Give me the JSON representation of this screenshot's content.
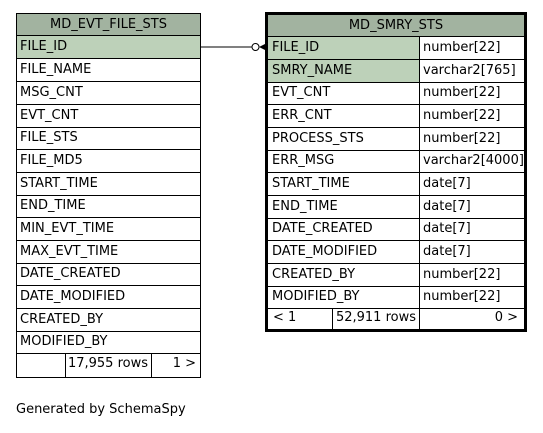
{
  "left_table": {
    "title": "MD_EVT_FILE_STS",
    "columns": [
      "FILE_ID",
      "FILE_NAME",
      "MSG_CNT",
      "EVT_CNT",
      "FILE_STS",
      "FILE_MD5",
      "START_TIME",
      "END_TIME",
      "MIN_EVT_TIME",
      "MAX_EVT_TIME",
      "DATE_CREATED",
      "DATE_MODIFIED",
      "CREATED_BY",
      "MODIFIED_BY"
    ],
    "rows_label": "17,955 rows",
    "children_label": "1 >"
  },
  "right_table": {
    "title": "MD_SMRY_STS",
    "columns": [
      {
        "name": "FILE_ID",
        "type": "number[22]"
      },
      {
        "name": "SMRY_NAME",
        "type": "varchar2[765]"
      },
      {
        "name": "EVT_CNT",
        "type": "number[22]"
      },
      {
        "name": "ERR_CNT",
        "type": "number[22]"
      },
      {
        "name": "PROCESS_STS",
        "type": "number[22]"
      },
      {
        "name": "ERR_MSG",
        "type": "varchar2[4000]"
      },
      {
        "name": "START_TIME",
        "type": "date[7]"
      },
      {
        "name": "END_TIME",
        "type": "date[7]"
      },
      {
        "name": "DATE_CREATED",
        "type": "date[7]"
      },
      {
        "name": "DATE_MODIFIED",
        "type": "date[7]"
      },
      {
        "name": "CREATED_BY",
        "type": "number[22]"
      },
      {
        "name": "MODIFIED_BY",
        "type": "number[22]"
      }
    ],
    "parents_label": "< 1",
    "rows_label": "52,911 rows",
    "children_label": "0 >"
  },
  "footer_text": "Generated by SchemaSpy",
  "colors": {
    "header_bg": "#a2b3a0",
    "pk_bg": "#bdd1b9",
    "border": "#000000"
  }
}
